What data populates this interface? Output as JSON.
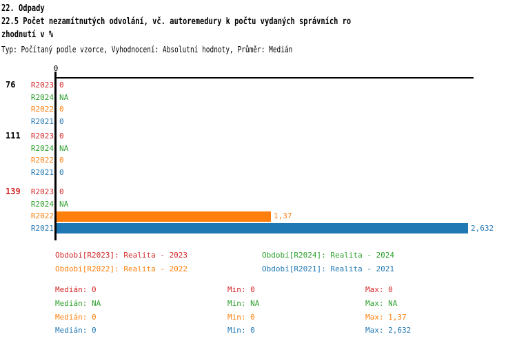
{
  "header": {
    "line1": "22. Odpady",
    "line2": "22.5 Počet nezamítnutých odvolání, vč. autoremedury k počtu vydaných správních ro",
    "line3": "zhodnutí v %",
    "meta": "Typ: Počítaný podle vzorce, Vyhodnocení: Absolutní hodnoty, Průměr: Medián"
  },
  "colors": {
    "R2023": "#d62728",
    "R2024": "#2ca02c",
    "R2022": "#ff7f0e",
    "R2021": "#1f77b4",
    "axis": "#000000",
    "group_default": "#000000",
    "group_highlight": "#d62728"
  },
  "chart_data": {
    "type": "bar",
    "orientation": "horizontal",
    "axis_tick": "0",
    "xlim": [
      0,
      2.67
    ],
    "grid": false,
    "groups": [
      {
        "label": "76",
        "highlighted": false,
        "rows": [
          {
            "period": "R2023",
            "value": 0,
            "value_label": "0"
          },
          {
            "period": "R2024",
            "value": null,
            "value_label": "NA"
          },
          {
            "period": "R2022",
            "value": 0,
            "value_label": "0"
          },
          {
            "period": "R2021",
            "value": 0,
            "value_label": "0"
          }
        ]
      },
      {
        "label": "111",
        "highlighted": false,
        "rows": [
          {
            "period": "R2023",
            "value": 0,
            "value_label": "0"
          },
          {
            "period": "R2024",
            "value": null,
            "value_label": "NA"
          },
          {
            "period": "R2022",
            "value": 0,
            "value_label": "0"
          },
          {
            "period": "R2021",
            "value": 0,
            "value_label": "0"
          }
        ]
      },
      {
        "label": "139",
        "highlighted": true,
        "rows": [
          {
            "period": "R2023",
            "value": 0,
            "value_label": "0"
          },
          {
            "period": "R2024",
            "value": null,
            "value_label": "NA"
          },
          {
            "period": "R2022",
            "value": 1.37,
            "value_label": "1,37"
          },
          {
            "period": "R2021",
            "value": 2.632,
            "value_label": "2,632"
          }
        ]
      }
    ]
  },
  "legend": [
    {
      "period": "R2023",
      "text": "Období[R2023]: Realita - 2023"
    },
    {
      "period": "R2024",
      "text": "Období[R2024]: Realita - 2024"
    },
    {
      "period": "R2022",
      "text": "Období[R2022]: Realita - 2022"
    },
    {
      "period": "R2021",
      "text": "Období[R2021]: Realita - 2021"
    }
  ],
  "stats": [
    {
      "period": "R2023",
      "median": "Medián: 0",
      "min": "Min: 0",
      "max": "Max: 0"
    },
    {
      "period": "R2024",
      "median": "Medián: NA",
      "min": "Min: NA",
      "max": "Max: NA"
    },
    {
      "period": "R2022",
      "median": "Medián: 0",
      "min": "Min: 0",
      "max": "Max: 1,37"
    },
    {
      "period": "R2021",
      "median": "Medián: 0",
      "min": "Min: 0",
      "max": "Max: 2,632"
    }
  ]
}
